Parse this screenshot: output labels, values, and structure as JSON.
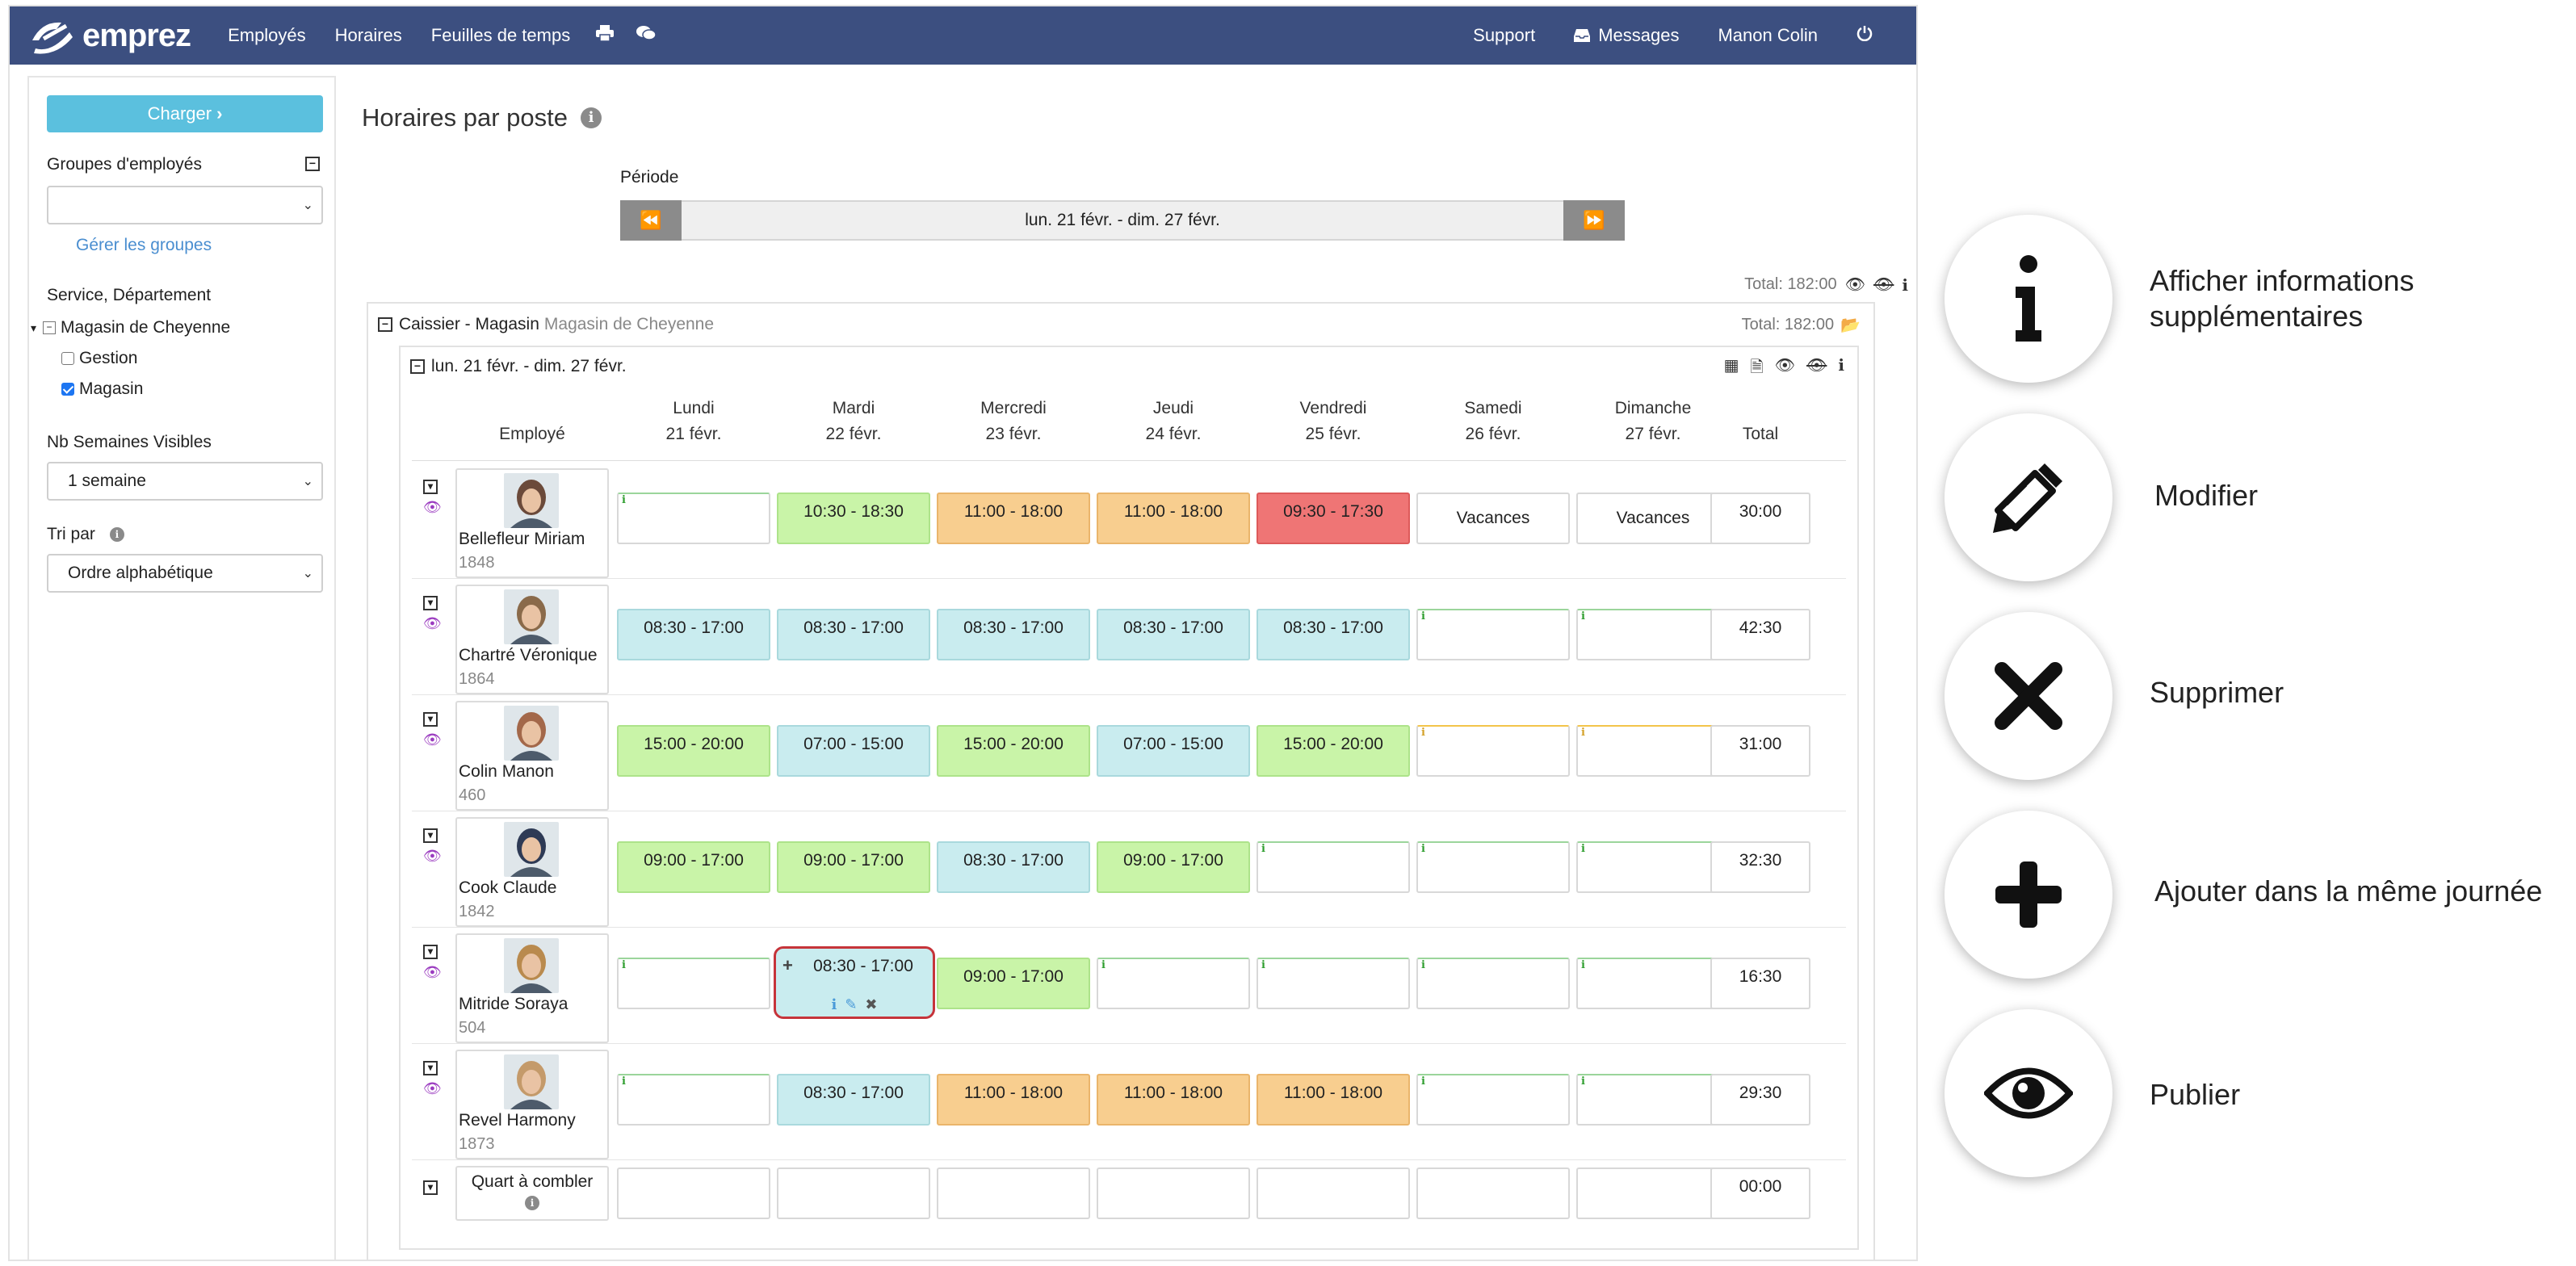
{
  "nav": {
    "brand": "emprez",
    "items": [
      "Employés",
      "Horaires",
      "Feuilles de temps"
    ],
    "right": {
      "support": "Support",
      "messages": "Messages",
      "user": "Manon Colin"
    }
  },
  "sidebar": {
    "load_button": "Charger",
    "groups_label": "Groupes d'employés",
    "groups_value": "",
    "manage_groups": "Gérer les groupes",
    "service_label": "Service, Département",
    "tree_root": "Magasin de Cheyenne",
    "tree_children": [
      {
        "label": "Gestion",
        "checked": false
      },
      {
        "label": "Magasin",
        "checked": true
      }
    ],
    "weeks_label": "Nb Semaines Visibles",
    "weeks_value": "1 semaine",
    "sort_label": "Tri par",
    "sort_value": "Ordre alphabétique"
  },
  "main": {
    "title": "Horaires par poste",
    "period_label": "Période",
    "period_value": "lun. 21 févr. - dim. 27 févr.",
    "total_top": "Total: 182:00",
    "panel_title": "Caissier - Magasin",
    "panel_subtitle": "Magasin de Cheyenne",
    "panel_total": "Total: 182:00",
    "week_label": "lun. 21 févr. - dim. 27 févr."
  },
  "columns": {
    "employee": "Employé",
    "total": "Total",
    "days": [
      {
        "name": "Lundi",
        "date": "21 févr."
      },
      {
        "name": "Mardi",
        "date": "22 févr."
      },
      {
        "name": "Mercredi",
        "date": "23 févr."
      },
      {
        "name": "Jeudi",
        "date": "24 févr."
      },
      {
        "name": "Vendredi",
        "date": "25 févr."
      },
      {
        "name": "Samedi",
        "date": "26 févr."
      },
      {
        "name": "Dimanche",
        "date": "27 févr."
      }
    ]
  },
  "rows": [
    {
      "name": "Bellefleur Miriam",
      "id": "1848",
      "total": "30:00",
      "cells": [
        {
          "text": "",
          "type": "empty"
        },
        {
          "text": "10:30 - 18:30",
          "type": "green"
        },
        {
          "text": "11:00 - 18:00",
          "type": "orange"
        },
        {
          "text": "11:00 - 18:00",
          "type": "orange"
        },
        {
          "text": "09:30 - 17:30",
          "type": "red"
        },
        {
          "text": "Vacances",
          "type": "blank"
        },
        {
          "text": "Vacances",
          "type": "blank"
        }
      ]
    },
    {
      "name": "Chartré Véronique",
      "id": "1864",
      "total": "42:30",
      "cells": [
        {
          "text": "08:30 - 17:00",
          "type": "blue"
        },
        {
          "text": "08:30 - 17:00",
          "type": "blue"
        },
        {
          "text": "08:30 - 17:00",
          "type": "blue"
        },
        {
          "text": "08:30 - 17:00",
          "type": "blue"
        },
        {
          "text": "08:30 - 17:00",
          "type": "blue"
        },
        {
          "text": "",
          "type": "empty"
        },
        {
          "text": "",
          "type": "empty"
        }
      ]
    },
    {
      "name": "Colin Manon",
      "id": "460",
      "total": "31:00",
      "cells": [
        {
          "text": "15:00 - 20:00",
          "type": "green"
        },
        {
          "text": "07:00 - 15:00",
          "type": "blue"
        },
        {
          "text": "15:00 - 20:00",
          "type": "green"
        },
        {
          "text": "07:00 - 15:00",
          "type": "blue"
        },
        {
          "text": "15:00 - 20:00",
          "type": "green"
        },
        {
          "text": "",
          "type": "empty yellow"
        },
        {
          "text": "",
          "type": "empty yellow"
        }
      ]
    },
    {
      "name": "Cook Claude",
      "id": "1842",
      "total": "32:30",
      "cells": [
        {
          "text": "09:00 - 17:00",
          "type": "green"
        },
        {
          "text": "09:00 - 17:00",
          "type": "green"
        },
        {
          "text": "08:30 - 17:00",
          "type": "blue"
        },
        {
          "text": "09:00 - 17:00",
          "type": "green"
        },
        {
          "text": "",
          "type": "empty"
        },
        {
          "text": "",
          "type": "empty"
        },
        {
          "text": "",
          "type": "empty"
        }
      ]
    },
    {
      "name": "Mitride Soraya",
      "id": "504",
      "total": "16:30",
      "cells": [
        {
          "text": "",
          "type": "empty"
        },
        {
          "text": "08:30 - 17:00",
          "type": "blue selected"
        },
        {
          "text": "09:00 - 17:00",
          "type": "green"
        },
        {
          "text": "",
          "type": "empty"
        },
        {
          "text": "",
          "type": "empty"
        },
        {
          "text": "",
          "type": "empty"
        },
        {
          "text": "",
          "type": "empty"
        }
      ]
    },
    {
      "name": "Revel Harmony",
      "id": "1873",
      "total": "29:30",
      "cells": [
        {
          "text": "",
          "type": "empty"
        },
        {
          "text": "08:30 - 17:00",
          "type": "blue"
        },
        {
          "text": "11:00 - 18:00",
          "type": "orange"
        },
        {
          "text": "11:00 - 18:00",
          "type": "orange"
        },
        {
          "text": "11:00 - 18:00",
          "type": "orange"
        },
        {
          "text": "",
          "type": "empty"
        },
        {
          "text": "",
          "type": "empty"
        }
      ]
    }
  ],
  "unfilled": {
    "label": "Quart à combler",
    "total": "00:00"
  },
  "legend": [
    {
      "icon": "info-icon",
      "label": "Afficher informations supplémentaires"
    },
    {
      "icon": "pencil-icon",
      "label": "Modifier"
    },
    {
      "icon": "close-icon",
      "label": "Supprimer"
    },
    {
      "icon": "plus-icon",
      "label": "Ajouter dans la même journée"
    },
    {
      "icon": "eye-icon",
      "label": "Publier"
    }
  ]
}
